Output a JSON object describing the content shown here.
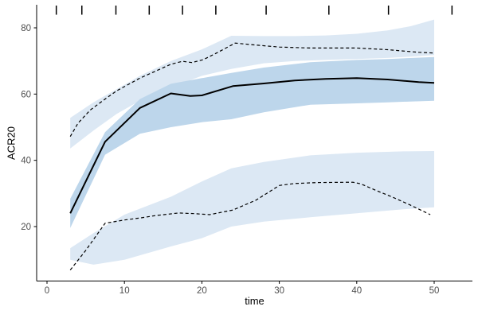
{
  "chart_data": {
    "type": "line",
    "title": "",
    "xlabel": "time",
    "ylabel": "ACR20",
    "x_ticks": [
      0,
      10,
      20,
      30,
      40,
      50
    ],
    "y_ticks": [
      20,
      40,
      60,
      80
    ],
    "xlim": [
      -1.3,
      55
    ],
    "ylim": [
      3.5,
      87
    ],
    "grid": "off",
    "legend": "none",
    "colors": {
      "band_light": "#dce8f4",
      "band_dark": "#bdd6eb",
      "line": "#000000",
      "axis_line": "#000000",
      "tick_label": "#4d4d4d"
    },
    "rug_times_top": [
      1.2,
      4.5,
      8.9,
      13.2,
      17.5,
      21.8,
      28.3,
      36.4,
      44.1,
      52.3
    ],
    "series": [
      {
        "name": "upper-dashed-curve",
        "style": "dashed",
        "points": [
          [
            3,
            47.2
          ],
          [
            4,
            51.2
          ],
          [
            5.6,
            55.2
          ],
          [
            7.5,
            58.5
          ],
          [
            9,
            61
          ],
          [
            12,
            64.8
          ],
          [
            16,
            69
          ],
          [
            17.5,
            69.9
          ],
          [
            18.7,
            69.5
          ],
          [
            20.2,
            70.4
          ],
          [
            22,
            72.5
          ],
          [
            24.3,
            75.4
          ],
          [
            27,
            74.8
          ],
          [
            30,
            74.2
          ],
          [
            34,
            73.9
          ],
          [
            40,
            73.9
          ],
          [
            44,
            73.4
          ],
          [
            48,
            72.6
          ],
          [
            50,
            72.4
          ]
        ]
      },
      {
        "name": "solid-mean-curve",
        "style": "solid",
        "points": [
          [
            3,
            24
          ],
          [
            7.5,
            45.6
          ],
          [
            12,
            55.8
          ],
          [
            16,
            60.2
          ],
          [
            18.5,
            59.4
          ],
          [
            20,
            59.6
          ],
          [
            24,
            62.4
          ],
          [
            28,
            63.2
          ],
          [
            32,
            64.1
          ],
          [
            36,
            64.6
          ],
          [
            40,
            64.8
          ],
          [
            44,
            64.4
          ],
          [
            48,
            63.6
          ],
          [
            50,
            63.4
          ]
        ]
      },
      {
        "name": "lower-dashed-curve",
        "style": "dashed",
        "points": [
          [
            3,
            6.9
          ],
          [
            5,
            12.8
          ],
          [
            7.5,
            21
          ],
          [
            10,
            22
          ],
          [
            12,
            22.6
          ],
          [
            14,
            23.3
          ],
          [
            17,
            24.1
          ],
          [
            19,
            23.9
          ],
          [
            21,
            23.6
          ],
          [
            24,
            25
          ],
          [
            27,
            28
          ],
          [
            30,
            32.4
          ],
          [
            32,
            33
          ],
          [
            35,
            33.3
          ],
          [
            39.5,
            33.4
          ],
          [
            40.5,
            32.9
          ],
          [
            42.6,
            30.8
          ],
          [
            44.7,
            28.8
          ],
          [
            47,
            26.4
          ],
          [
            49.5,
            23.6
          ]
        ]
      }
    ],
    "bands": [
      {
        "name": "upper-confidence-band",
        "tone": "light",
        "t": [
          3,
          6,
          9,
          12,
          16,
          20,
          23.8,
          28,
          32,
          36,
          40,
          44,
          47,
          50
        ],
        "lower": [
          43.6,
          49,
          54,
          58,
          62,
          65.5,
          67.6,
          69.3,
          70,
          70.3,
          70.6,
          70.9,
          71.3,
          71.8
        ],
        "upper": [
          52.8,
          57.5,
          61.5,
          65.5,
          70,
          73.5,
          77.6,
          77.5,
          77.5,
          77.7,
          78.2,
          79.2,
          80.5,
          82.5
        ]
      },
      {
        "name": "middle-confidence-band",
        "tone": "dark",
        "t": [
          3,
          7.5,
          12,
          16,
          20,
          23.8,
          28,
          34,
          40,
          44,
          50
        ],
        "lower": [
          19.6,
          41.7,
          48,
          50,
          51.5,
          52.4,
          54.5,
          56.8,
          57.2,
          57.5,
          58
        ],
        "upper": [
          28.4,
          48.5,
          58.5,
          63.1,
          64.8,
          66.4,
          68,
          69.6,
          70.3,
          70.6,
          71.2
        ]
      },
      {
        "name": "lower-confidence-band",
        "tone": "light",
        "t": [
          3,
          6,
          10,
          16,
          20,
          23.8,
          28,
          34,
          40,
          46,
          50
        ],
        "lower": [
          10,
          8.5,
          10,
          14,
          16.5,
          20,
          21.5,
          22.8,
          24,
          25.2,
          25.8
        ],
        "upper": [
          13.5,
          18,
          23.6,
          29,
          33.6,
          37.6,
          39.5,
          41.5,
          42.3,
          42.7,
          42.8
        ]
      }
    ]
  }
}
